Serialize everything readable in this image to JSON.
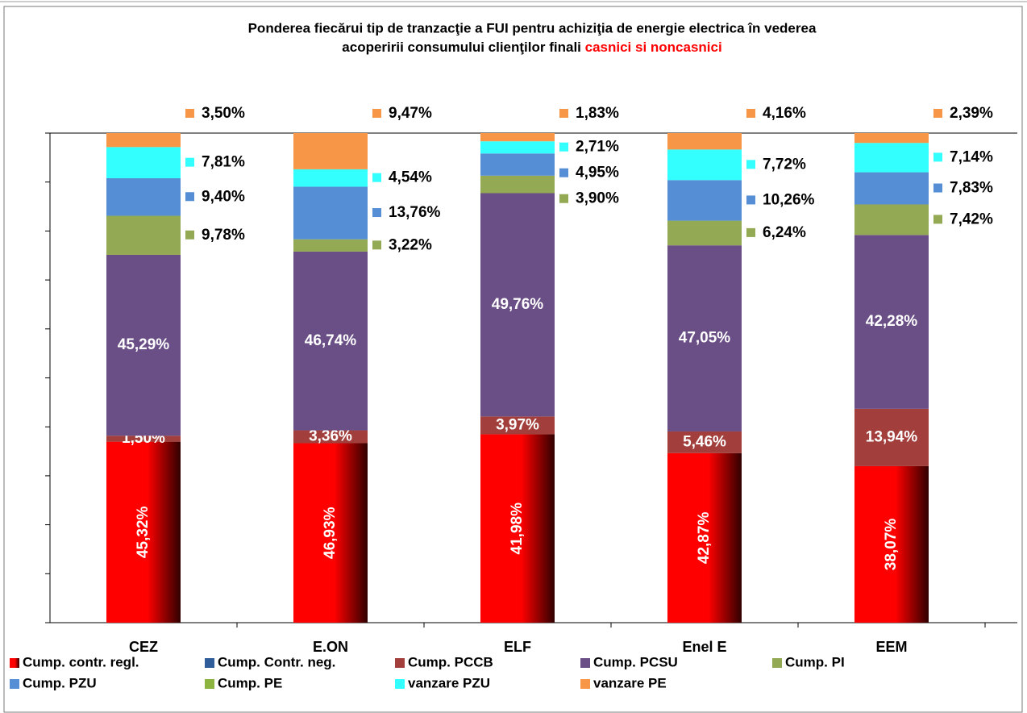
{
  "chart_data": {
    "type": "stacked_percent_bar",
    "title_lines": [
      "Ponderea fiecărui tip de tranzacţie a FUI  pentru achiziţia de energie  electrica  în vederea",
      "acoperirii consumului  clienţilor finali "
    ],
    "title_highlight": "casnici si noncasnici",
    "categories": [
      "CEZ",
      "E.ON",
      "ELF",
      "Enel E",
      "EEM"
    ],
    "ylim": [
      0,
      100
    ],
    "yticks": [
      0,
      10,
      20,
      30,
      40,
      50,
      60,
      70,
      80,
      90,
      100
    ],
    "series": [
      {
        "name": "Cump. contr. regl.",
        "color": "#ff0000",
        "gradient": true,
        "values": [
          45.32,
          46.93,
          41.98,
          42.87,
          38.07
        ],
        "value_labels": [
          "45,32%",
          "46,93%",
          "41,98%",
          "42,87%",
          "38,07%"
        ]
      },
      {
        "name": "Cump. Contr. neg.",
        "color": "#2f5d9a",
        "values": [
          0,
          0,
          0,
          0,
          0
        ]
      },
      {
        "name": "Cump. PCCB",
        "color": "#a23f3c",
        "values": [
          1.5,
          3.36,
          3.97,
          5.46,
          13.94
        ],
        "value_labels": [
          "1,50%",
          "3,36%",
          "3,97%",
          "5,46%",
          "13,94%"
        ]
      },
      {
        "name": "Cump. PCSU",
        "color": "#6a4e86",
        "values": [
          45.29,
          46.74,
          49.76,
          47.05,
          42.28
        ],
        "value_labels": [
          "45,29%",
          "46,74%",
          "49,76%",
          "47,05%",
          "42,28%"
        ]
      },
      {
        "name": "Cump. PI",
        "color": "#93a954",
        "values": [
          9.78,
          3.22,
          3.9,
          6.24,
          7.42
        ],
        "value_labels": [
          "9,78%",
          "3,22%",
          "3,90%",
          "6,24%",
          "7,42%"
        ]
      },
      {
        "name": "Cump. PZU",
        "color": "#558ed5",
        "values": [
          9.4,
          13.76,
          4.95,
          10.26,
          7.83
        ],
        "value_labels": [
          "9,40%",
          "13,76%",
          "4,95%",
          "10,26%",
          "7,83%"
        ]
      },
      {
        "name": "Cump. PE",
        "color": "#8db33f",
        "values": [
          0,
          0,
          0,
          0,
          0
        ]
      },
      {
        "name": "vanzare  PZU",
        "color": "#33ffff",
        "values": [
          7.81,
          4.54,
          2.71,
          7.72,
          7.14
        ],
        "value_labels": [
          "7,81%",
          "4,54%",
          "2,71%",
          "7,72%",
          "7,14%"
        ]
      },
      {
        "name": "vanzare  PE",
        "color": "#f79646",
        "values": [
          3.5,
          9.47,
          1.83,
          4.16,
          2.39
        ],
        "value_labels": [
          "3,50%",
          "9,47%",
          "1,83%",
          "4,16%",
          "2,39%"
        ]
      }
    ]
  }
}
